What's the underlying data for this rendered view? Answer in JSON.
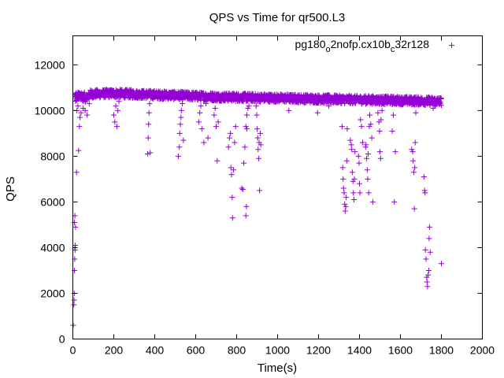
{
  "chart_data": {
    "type": "scatter",
    "title": "QPS vs Time for qr500.L3",
    "xlabel": "Time(s)",
    "ylabel": "QPS",
    "xlim": [
      0,
      2000
    ],
    "ylim": [
      0,
      13270
    ],
    "xticks": [
      0,
      200,
      400,
      600,
      800,
      1000,
      1200,
      1400,
      1600,
      1800,
      2000
    ],
    "yticks": [
      0,
      2000,
      4000,
      6000,
      8000,
      10000,
      12000
    ],
    "xtick_labels": [
      "0",
      "200",
      "400",
      "600",
      "800",
      "1000",
      "1200",
      "1400",
      "1600",
      "1800",
      "2000"
    ],
    "ytick_labels": [
      "0",
      "2000",
      "4000",
      "6000",
      "8000",
      "10000",
      "12000"
    ],
    "grid": false,
    "legend_position": "top-right",
    "series": [
      {
        "name": "pg180_o2nofp.cx10b_c32r128",
        "legend_parts": [
          "pg180",
          "o",
          "2nofp.cx10b",
          "c",
          "32r128"
        ],
        "color": "#9400d3",
        "marker": "plus",
        "band": {
          "x_start": 10,
          "x_end": 1800,
          "y_start": 10700,
          "y_mid": 10750,
          "y_end": 10400,
          "jitter": 180
        },
        "outliers": [
          [
            2,
            600
          ],
          [
            5,
            1500
          ],
          [
            6,
            1700
          ],
          [
            7,
            2000
          ],
          [
            8,
            3000
          ],
          [
            9,
            3500
          ],
          [
            10,
            4000
          ],
          [
            11,
            3900
          ],
          [
            12,
            4100
          ],
          [
            8,
            5100
          ],
          [
            10,
            5400
          ],
          [
            13,
            4900
          ],
          [
            18,
            7300
          ],
          [
            28,
            8250
          ],
          [
            32,
            9300
          ],
          [
            35,
            9700
          ],
          [
            20,
            10000
          ],
          [
            25,
            10200
          ],
          [
            40,
            9900
          ],
          [
            50,
            10100
          ],
          [
            60,
            10000
          ],
          [
            70,
            9800
          ],
          [
            80,
            10300
          ],
          [
            45,
            10500
          ],
          [
            200,
            9800
          ],
          [
            205,
            9500
          ],
          [
            210,
            10200
          ],
          [
            215,
            9300
          ],
          [
            220,
            10000
          ],
          [
            225,
            10400
          ],
          [
            365,
            8100
          ],
          [
            368,
            8800
          ],
          [
            370,
            9400
          ],
          [
            372,
            9900
          ],
          [
            375,
            10300
          ],
          [
            378,
            8150
          ],
          [
            515,
            8000
          ],
          [
            520,
            8400
          ],
          [
            522,
            9000
          ],
          [
            525,
            9400
          ],
          [
            528,
            9700
          ],
          [
            530,
            10000
          ],
          [
            535,
            10300
          ],
          [
            540,
            8700
          ],
          [
            615,
            9500
          ],
          [
            620,
            9900
          ],
          [
            625,
            10200
          ],
          [
            630,
            9200
          ],
          [
            640,
            8600
          ],
          [
            650,
            10300
          ],
          [
            660,
            8800
          ],
          [
            690,
            9800
          ],
          [
            695,
            10100
          ],
          [
            700,
            9300
          ],
          [
            705,
            7800
          ],
          [
            710,
            9500
          ],
          [
            760,
            8400
          ],
          [
            765,
            8800
          ],
          [
            770,
            9000
          ],
          [
            772,
            7500
          ],
          [
            775,
            7200
          ],
          [
            778,
            6200
          ],
          [
            780,
            5300
          ],
          [
            785,
            7400
          ],
          [
            790,
            8600
          ],
          [
            795,
            9300
          ],
          [
            825,
            6600
          ],
          [
            830,
            6550
          ],
          [
            835,
            7700
          ],
          [
            840,
            8400
          ],
          [
            845,
            9300
          ],
          [
            850,
            9800
          ],
          [
            855,
            10100
          ],
          [
            845,
            5400
          ],
          [
            848,
            5800
          ],
          [
            850,
            9200
          ],
          [
            860,
            10200
          ],
          [
            895,
            10200
          ],
          [
            898,
            9800
          ],
          [
            900,
            9200
          ],
          [
            903,
            8800
          ],
          [
            905,
            8300
          ],
          [
            908,
            7900
          ],
          [
            910,
            8600
          ],
          [
            912,
            6500
          ],
          [
            915,
            9000
          ],
          [
            918,
            8500
          ],
          [
            1055,
            10000
          ],
          [
            1060,
            10400
          ],
          [
            1195,
            9900
          ],
          [
            1250,
            10200
          ],
          [
            1315,
            9300
          ],
          [
            1318,
            7500
          ],
          [
            1320,
            7000
          ],
          [
            1322,
            6600
          ],
          [
            1325,
            6400
          ],
          [
            1328,
            5900
          ],
          [
            1330,
            5600
          ],
          [
            1333,
            5800
          ],
          [
            1335,
            6200
          ],
          [
            1338,
            7800
          ],
          [
            1340,
            9200
          ],
          [
            1355,
            8700
          ],
          [
            1360,
            8500
          ],
          [
            1362,
            8300
          ],
          [
            1365,
            7300
          ],
          [
            1368,
            6900
          ],
          [
            1370,
            6400
          ],
          [
            1373,
            6100
          ],
          [
            1375,
            7000
          ],
          [
            1378,
            8200
          ],
          [
            1395,
            8000
          ],
          [
            1398,
            7700
          ],
          [
            1400,
            6800
          ],
          [
            1402,
            6400
          ],
          [
            1405,
            9600
          ],
          [
            1410,
            9300
          ],
          [
            1415,
            8600
          ],
          [
            1430,
            8400
          ],
          [
            1432,
            8500
          ],
          [
            1435,
            7900
          ],
          [
            1438,
            7400
          ],
          [
            1440,
            7000
          ],
          [
            1442,
            8100
          ],
          [
            1445,
            6400
          ],
          [
            1448,
            9300
          ],
          [
            1450,
            9800
          ],
          [
            1455,
            9400
          ],
          [
            1460,
            8800
          ],
          [
            1465,
            6000
          ],
          [
            1490,
            9900
          ],
          [
            1495,
            9500
          ],
          [
            1498,
            9100
          ],
          [
            1500,
            8200
          ],
          [
            1503,
            7900
          ],
          [
            1505,
            9600
          ],
          [
            1510,
            10000
          ],
          [
            1560,
            9100
          ],
          [
            1565,
            9800
          ],
          [
            1570,
            6000
          ],
          [
            1575,
            8200
          ],
          [
            1655,
            8300
          ],
          [
            1660,
            8200
          ],
          [
            1662,
            7800
          ],
          [
            1665,
            7300
          ],
          [
            1668,
            5700
          ],
          [
            1670,
            7500
          ],
          [
            1672,
            8600
          ],
          [
            1675,
            9900
          ],
          [
            1715,
            7100
          ],
          [
            1718,
            6500
          ],
          [
            1720,
            6400
          ],
          [
            1722,
            3900
          ],
          [
            1725,
            3500
          ],
          [
            1728,
            2700
          ],
          [
            1730,
            2500
          ],
          [
            1732,
            2300
          ],
          [
            1735,
            2800
          ],
          [
            1738,
            3000
          ],
          [
            1740,
            4400
          ],
          [
            1742,
            4900
          ],
          [
            1745,
            3800
          ],
          [
            1760,
            10100
          ],
          [
            1770,
            10200
          ],
          [
            1800,
            3300
          ]
        ],
        "legend_sample_point": [
          1850,
          12850
        ]
      }
    ]
  }
}
